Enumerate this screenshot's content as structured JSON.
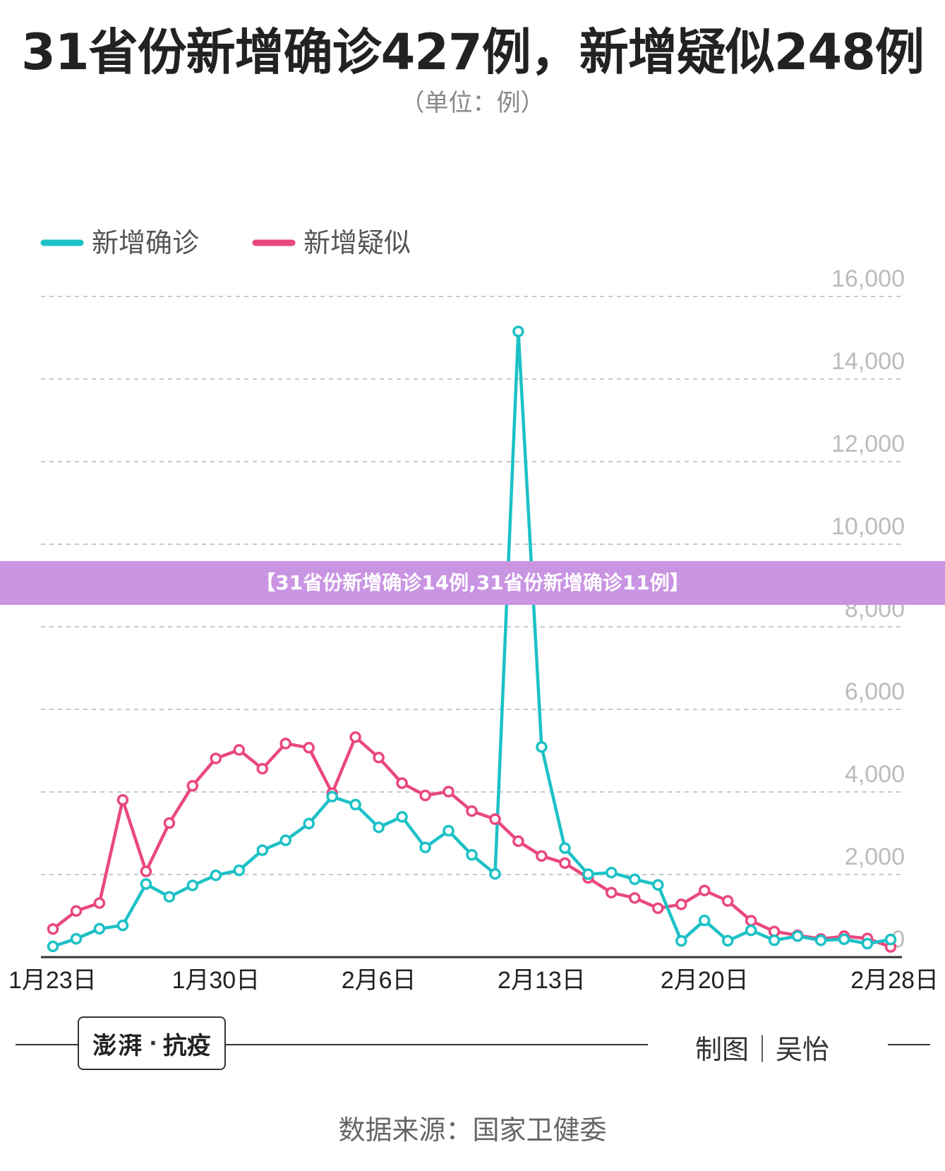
{
  "header": {
    "title": "31省份新增确诊427例，新增疑似248例",
    "subtitle": "（单位：例）"
  },
  "banner": {
    "text": "【31省份新增确诊14例,31省份新增确诊11例】"
  },
  "footer": {
    "logo_text": "澎湃",
    "logo_brand": "抗疫",
    "credit": "制图｜吴怡",
    "source": "数据来源：国家卫健委"
  },
  "colors": {
    "confirmed": "#1cc1c6",
    "suspected": "#e9487e",
    "grid": "#c8c8c8",
    "axis": "#333333",
    "tick": "#bbbbbb",
    "banner": "#c994e2"
  },
  "chart_data": {
    "type": "line",
    "title": "31省份新增确诊427例，新增疑似248例",
    "subtitle": "（单位：例）",
    "xlabel": "",
    "ylabel": "",
    "ylim": [
      0,
      16000
    ],
    "y_ticks": [
      "0",
      "2,000",
      "4,000",
      "6,000",
      "8,000",
      "10,000",
      "12,000",
      "14,000",
      "16,000"
    ],
    "y_tick_values": [
      0,
      2000,
      4000,
      6000,
      8000,
      10000,
      12000,
      14000,
      16000
    ],
    "x_tick_labels": [
      "1月23日",
      "1月30日",
      "2月6日",
      "2月13日",
      "2月20日",
      "2月28日"
    ],
    "x_tick_dates": [
      "2020-01-23",
      "2020-01-30",
      "2020-02-06",
      "2020-02-13",
      "2020-02-20",
      "2020-02-28"
    ],
    "legend_position": "top-left",
    "grid": true,
    "x": [
      "2020-01-23",
      "2020-01-24",
      "2020-01-25",
      "2020-01-26",
      "2020-01-27",
      "2020-01-28",
      "2020-01-29",
      "2020-01-30",
      "2020-01-31",
      "2020-02-01",
      "2020-02-02",
      "2020-02-03",
      "2020-02-04",
      "2020-02-05",
      "2020-02-06",
      "2020-02-07",
      "2020-02-08",
      "2020-02-09",
      "2020-02-10",
      "2020-02-11",
      "2020-02-12",
      "2020-02-13",
      "2020-02-14",
      "2020-02-15",
      "2020-02-16",
      "2020-02-17",
      "2020-02-18",
      "2020-02-19",
      "2020-02-20",
      "2020-02-21",
      "2020-02-22",
      "2020-02-23",
      "2020-02-24",
      "2020-02-25",
      "2020-02-26",
      "2020-02-27",
      "2020-02-28"
    ],
    "series": [
      {
        "name": "新增确诊",
        "color": "#1cc1c6",
        "values": [
          259,
          444,
          688,
          769,
          1771,
          1459,
          1737,
          1981,
          2102,
          2590,
          2829,
          3235,
          3887,
          3694,
          3143,
          3399,
          2656,
          3062,
          2478,
          2015,
          15152,
          5090,
          2641,
          2009,
          2048,
          1886,
          1749,
          394,
          889,
          397,
          648,
          409,
          508,
          406,
          433,
          327,
          427
        ]
      },
      {
        "name": "新增疑似",
        "color": "#e9487e",
        "values": [
          680,
          1118,
          1309,
          3806,
          2077,
          3248,
          4148,
          4812,
          5019,
          4562,
          5173,
          5072,
          3971,
          5328,
          4833,
          4214,
          3916,
          4008,
          3536,
          3342,
          2807,
          2450,
          2277,
          1918,
          1563,
          1432,
          1185,
          1277,
          1614,
          1361,
          882,
          620,
          530,
          439,
          508,
          452,
          248
        ]
      }
    ]
  }
}
